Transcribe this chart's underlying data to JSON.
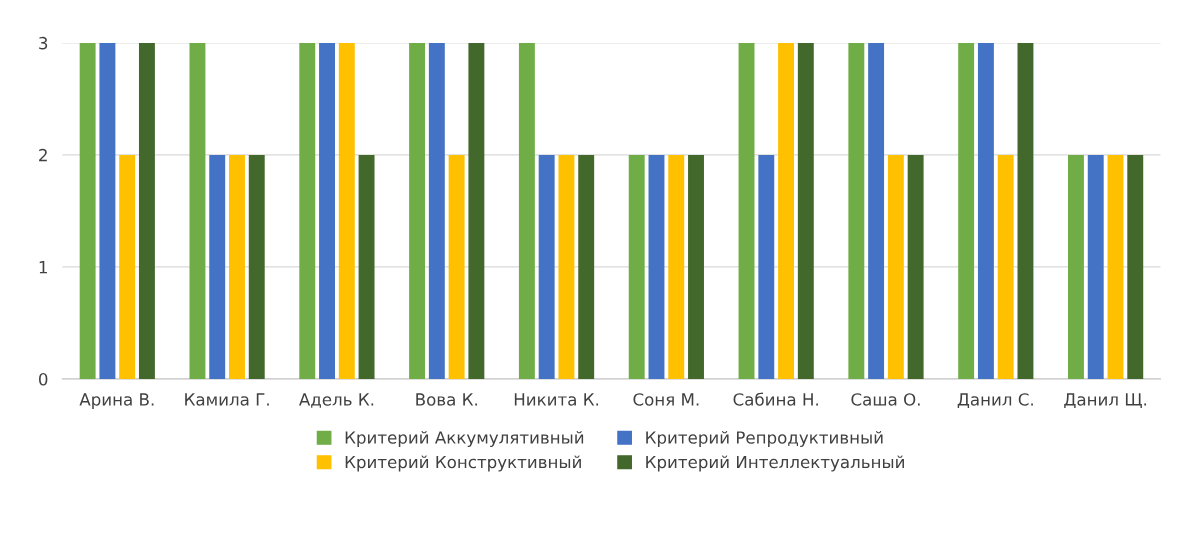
{
  "chart_data": {
    "type": "bar",
    "categories": [
      "Арина В.",
      "Камила Г.",
      "Адель К.",
      "Вова К.",
      "Никита К.",
      "Соня М.",
      "Сабина Н.",
      "Саша О.",
      "Данил С.",
      "Данил Щ."
    ],
    "series": [
      {
        "name": "Критерий Аккумулятивный",
        "color": "#70ad47",
        "values": [
          3,
          3,
          3,
          3,
          3,
          2,
          3,
          3,
          3,
          2
        ]
      },
      {
        "name": "Критерий Репродуктивный",
        "color": "#4472c4",
        "values": [
          3,
          2,
          3,
          3,
          2,
          2,
          2,
          3,
          3,
          2
        ]
      },
      {
        "name": "Критерий Конструктивный",
        "color": "#ffc000",
        "values": [
          2,
          2,
          3,
          2,
          2,
          2,
          3,
          2,
          2,
          2
        ]
      },
      {
        "name": "Критерий Интеллектуальный",
        "color": "#43682b",
        "values": [
          3,
          2,
          2,
          3,
          2,
          2,
          3,
          2,
          3,
          2
        ]
      }
    ],
    "ylim": [
      0,
      3
    ],
    "yticks": [
      0,
      1,
      2,
      3
    ],
    "grid": "y",
    "legend": "bottom"
  }
}
